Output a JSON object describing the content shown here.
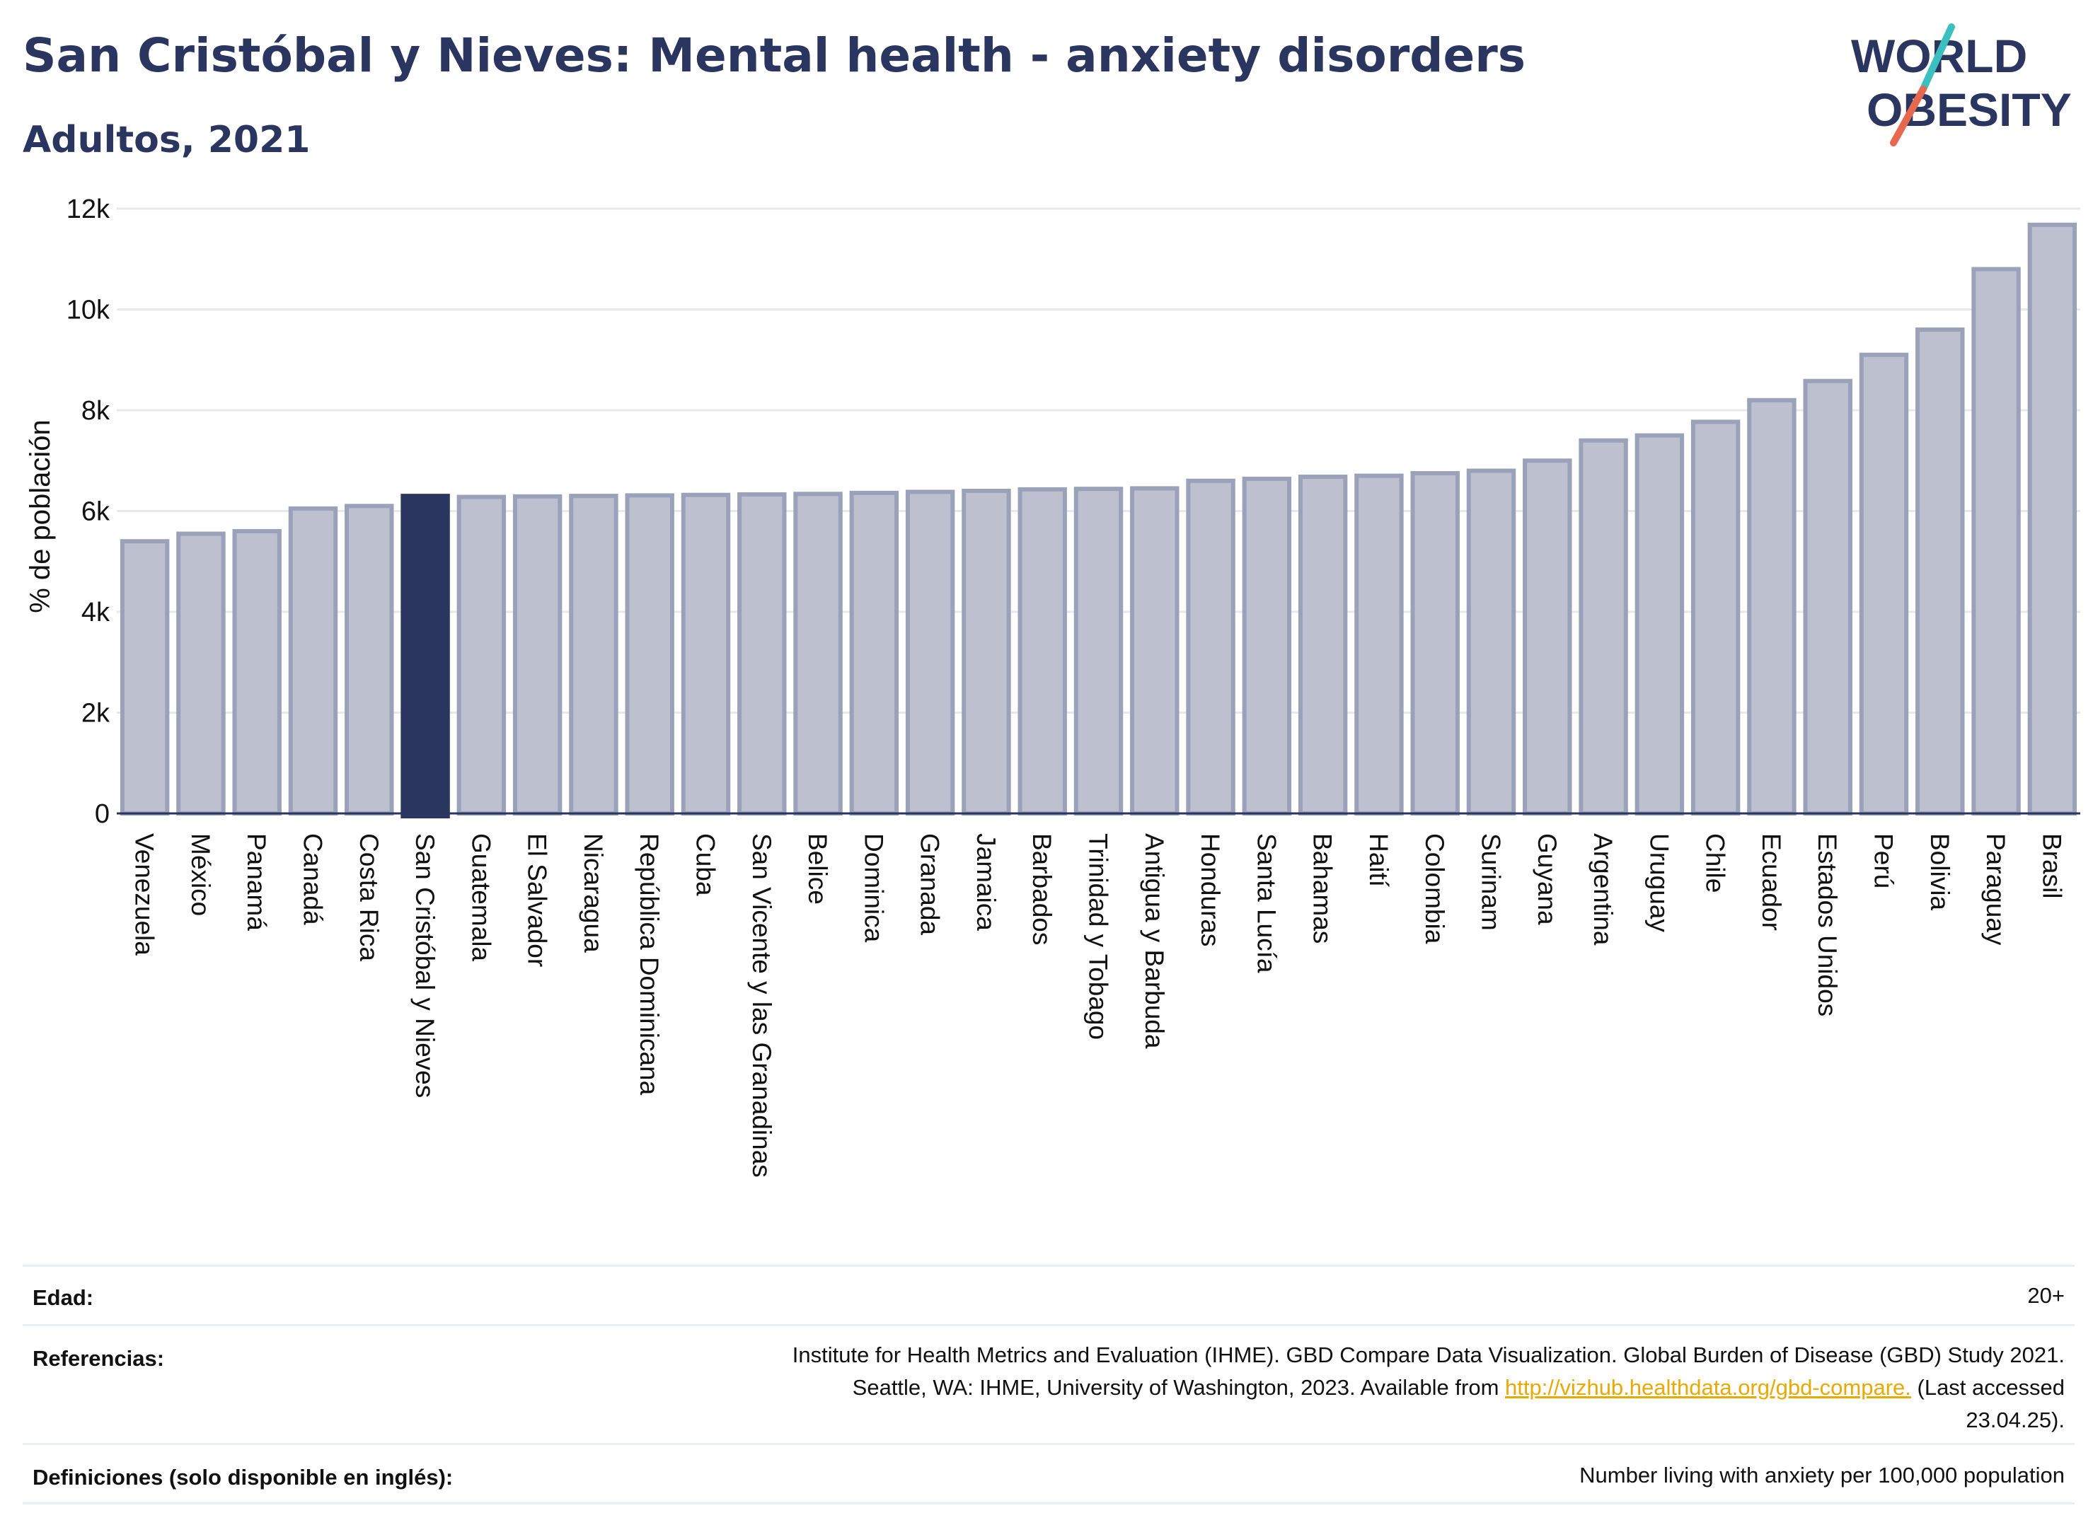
{
  "header": {
    "title": "San Cristóbal y Nieves: Mental health - anxiety disorders",
    "subtitle": "Adultos, 2021"
  },
  "logo": {
    "line1": "WORLD",
    "line2": "OBESITY",
    "alt": "World Obesity logo"
  },
  "colors": {
    "bar": "#bcc0cf",
    "bar_edge": "#9aa1b8",
    "highlight": "#2a3560",
    "grid": "#e8e9ef",
    "logo_teal": "#3cbfbf",
    "logo_red": "#e8674f",
    "link": "#e8a900"
  },
  "chart_data": {
    "type": "bar",
    "ylabel": "% de población",
    "ylim": [
      0,
      12000
    ],
    "yticks": [
      0,
      2000,
      4000,
      6000,
      8000,
      10000,
      12000
    ],
    "ytick_labels": [
      "0",
      "2k",
      "4k",
      "6k",
      "8k",
      "10k",
      "12k"
    ],
    "highlight_category": "San Cristóbal y Nieves",
    "grid": true,
    "categories": [
      "Venezuela",
      "México",
      "Panamá",
      "Canadá",
      "Costa Rica",
      "San Cristóbal y Nieves",
      "Guatemala",
      "El Salvador",
      "Nicaragua",
      "República Dominicana",
      "Cuba",
      "San Vicente y las Granadinas",
      "Belice",
      "Dominica",
      "Granada",
      "Jamaica",
      "Barbados",
      "Trinidad y Tobago",
      "Antigua y Barbuda",
      "Honduras",
      "Santa Lucía",
      "Bahamas",
      "Haití",
      "Colombia",
      "Surinam",
      "Guyana",
      "Argentina",
      "Uruguay",
      "Chile",
      "Ecuador",
      "Estados Unidos",
      "Perú",
      "Bolivia",
      "Paraguay",
      "Brasil"
    ],
    "values": [
      5400,
      5550,
      5600,
      6050,
      6100,
      6300,
      6280,
      6290,
      6300,
      6310,
      6320,
      6330,
      6340,
      6360,
      6380,
      6400,
      6430,
      6440,
      6450,
      6600,
      6640,
      6680,
      6700,
      6750,
      6800,
      7000,
      7400,
      7500,
      7770,
      8200,
      8580,
      9100,
      9600,
      10800,
      11680
    ]
  },
  "footer": {
    "rows": [
      {
        "label": "Edad:",
        "value": "20+"
      },
      {
        "label": "Referencias:",
        "value_line1": "Institute for Health Metrics and Evaluation (IHME). GBD Compare Data Visualization. Global Burden of Disease (GBD) Study 2021.",
        "value_line2_pre": "Seattle, WA: IHME, University of Washington, 2023. Available from ",
        "link": "http://vizhub.healthdata.org/gbd-compare.",
        "value_line2_post": " (Last accessed",
        "value_line3": "23.04.25)."
      },
      {
        "label": "Definiciones (solo disponible en inglés):",
        "value": "Number living with anxiety per 100,000 population"
      }
    ]
  }
}
